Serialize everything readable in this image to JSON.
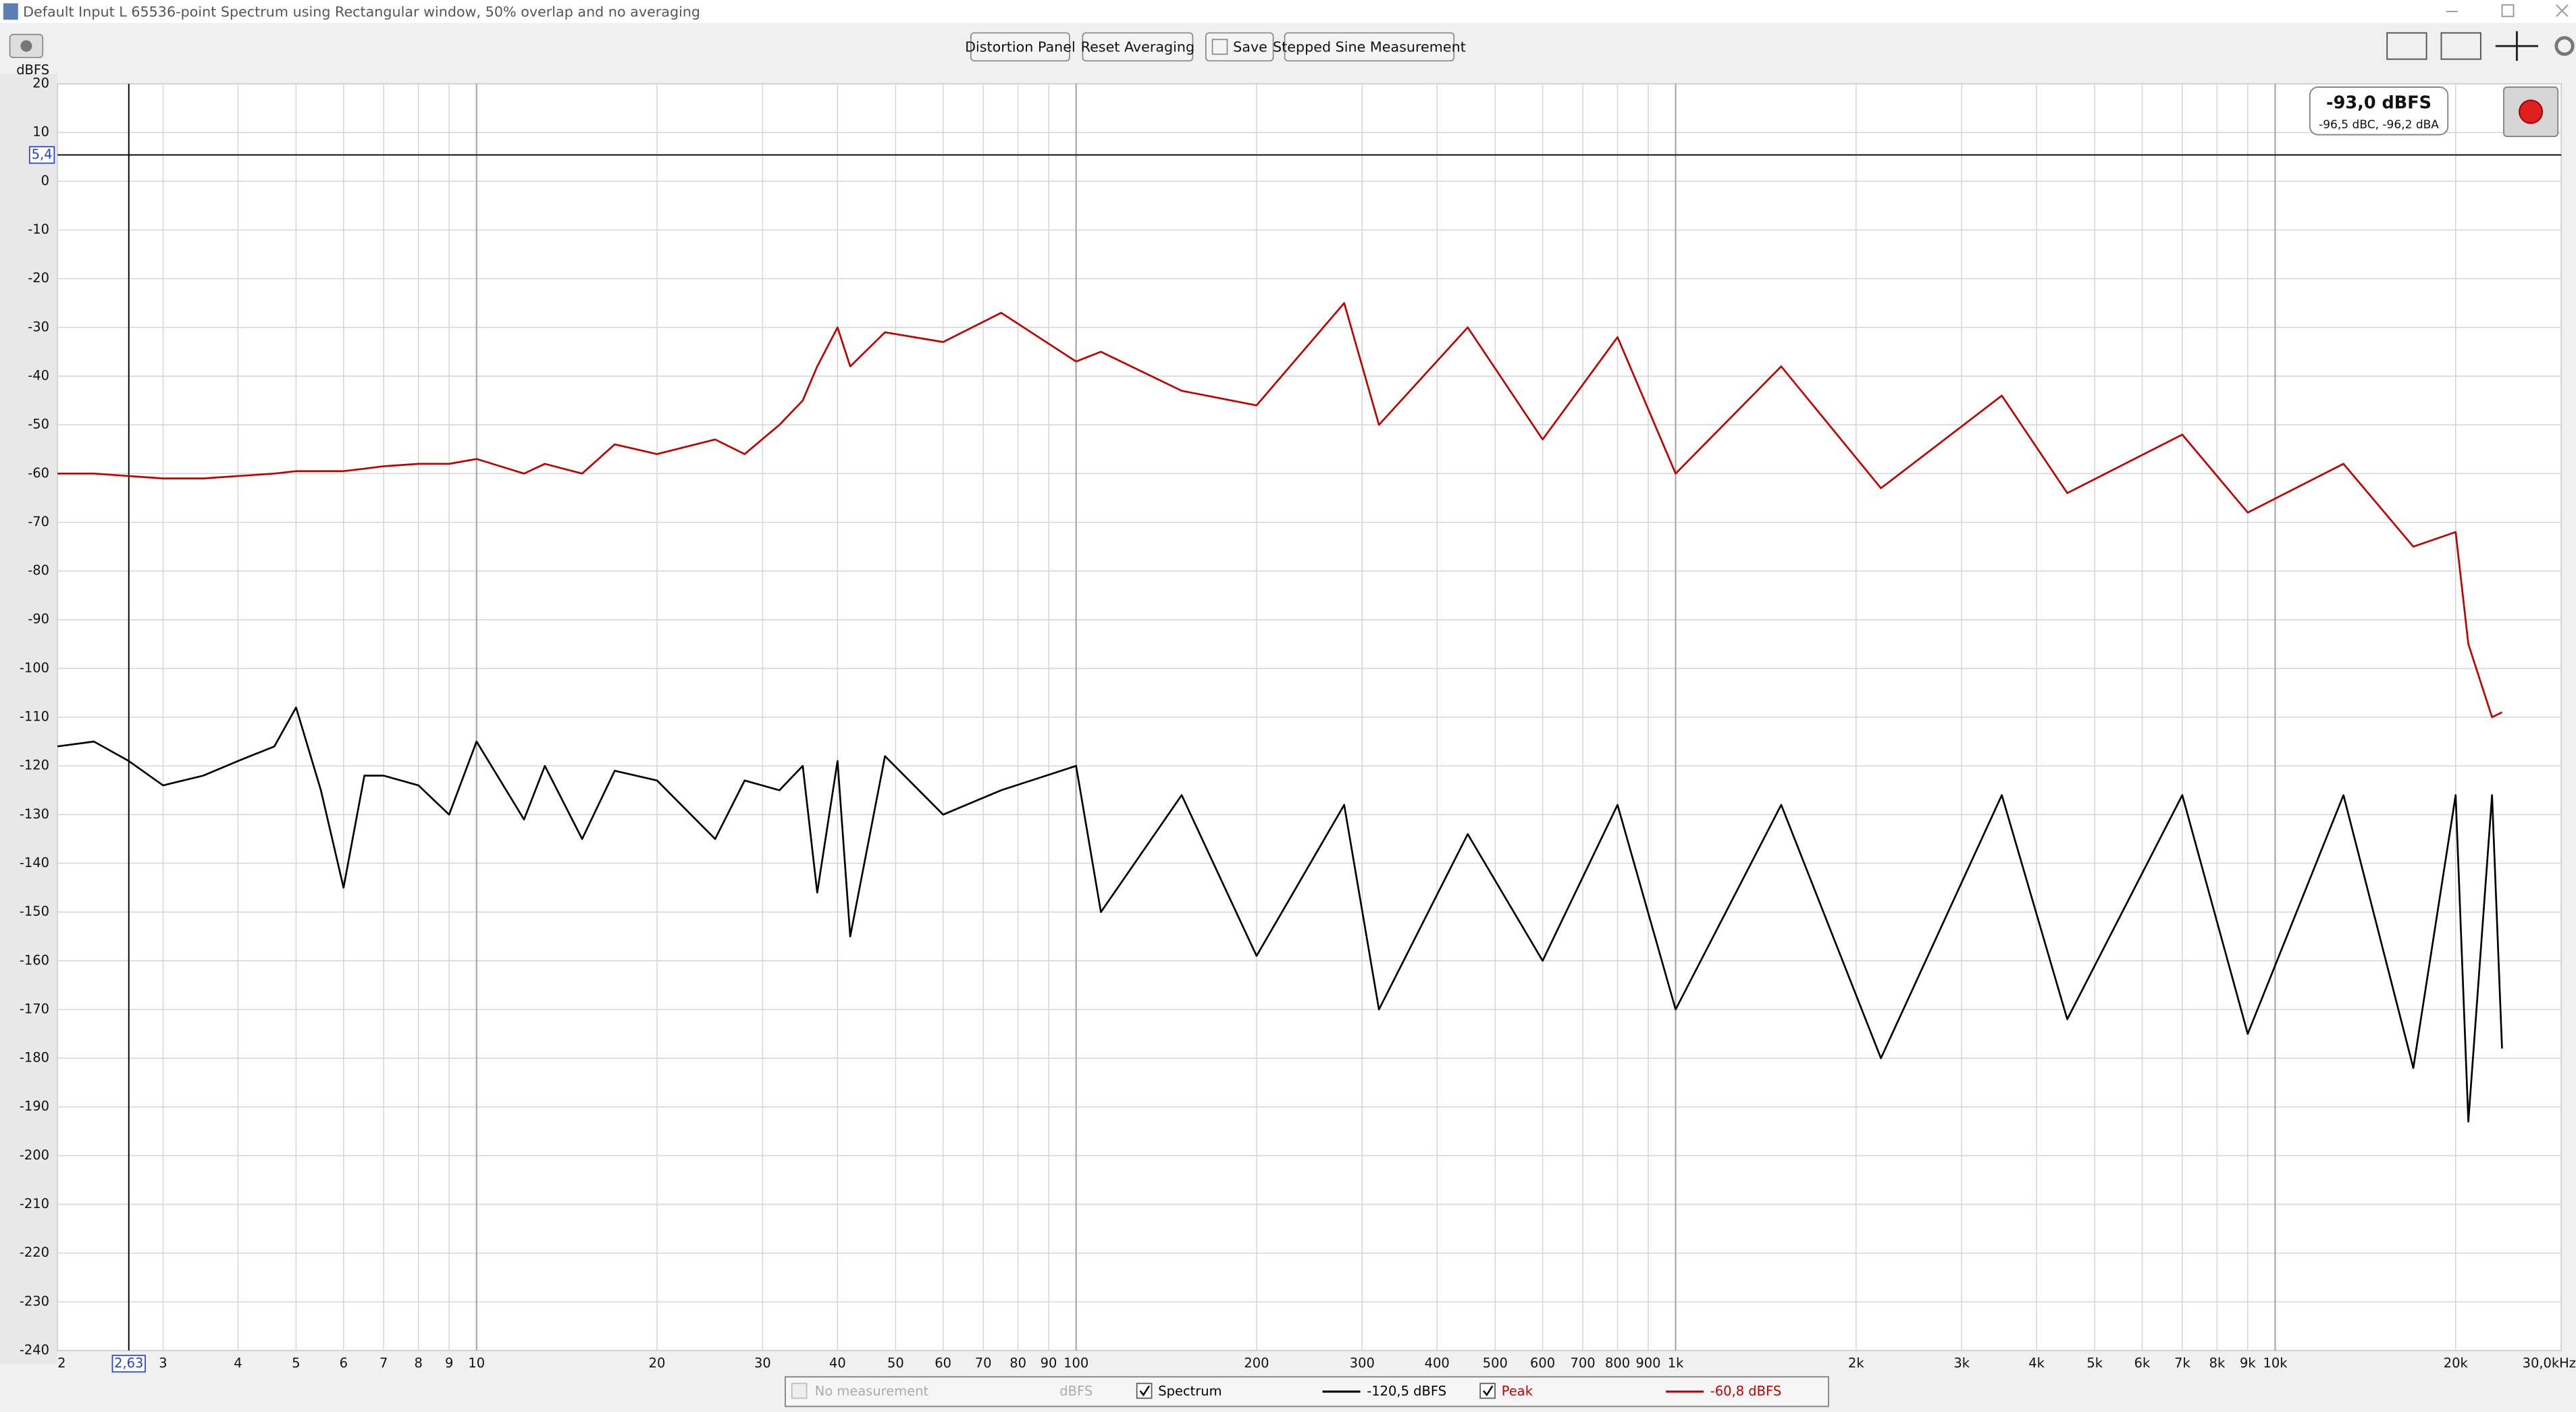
{
  "window": {
    "title": "Default Input L 65536-point Spectrum using Rectangular window, 50% overlap and no averaging"
  },
  "toolbar": {
    "buttons": [
      "Distortion Panel",
      "Reset Averaging",
      "Save",
      "Stepped Sine Measurement"
    ]
  },
  "readout": {
    "level": "-93,0 dBFS",
    "weighted": "-96,5 dBC, -96,2 dBA"
  },
  "legend": {
    "placeholder": "No measurement",
    "placeholder_unit": "dBFS",
    "values": [
      "-120,5 dBFS",
      "-60,8 dBFS"
    ]
  },
  "chart_data": {
    "type": "line",
    "y_label": "dBFS",
    "x_scale": "log",
    "grid": true,
    "xlim": [
      2,
      30000
    ],
    "ylim": [
      -240,
      20
    ],
    "xticks": [
      2,
      3,
      4,
      5,
      6,
      7,
      8,
      9,
      10,
      20,
      30,
      40,
      50,
      60,
      70,
      80,
      90,
      100,
      200,
      300,
      400,
      500,
      600,
      700,
      800,
      900,
      {
        "value": 1000,
        "label": "1k"
      },
      {
        "value": 2000,
        "label": "2k"
      },
      {
        "value": 3000,
        "label": "3k"
      },
      {
        "value": 4000,
        "label": "4k"
      },
      {
        "value": 5000,
        "label": "5k"
      },
      {
        "value": 6000,
        "label": "6k"
      },
      {
        "value": 7000,
        "label": "7k"
      },
      {
        "value": 8000,
        "label": "8k"
      },
      {
        "value": 9000,
        "label": "9k"
      },
      {
        "value": 10000,
        "label": "10k"
      },
      {
        "value": 20000,
        "label": "20k"
      },
      {
        "value": 30000,
        "label": "30,0kHz"
      }
    ],
    "yticks": [
      -240,
      -230,
      -220,
      -210,
      -200,
      -190,
      -180,
      -170,
      -160,
      -150,
      -140,
      -130,
      -120,
      -110,
      -100,
      -90,
      -80,
      -70,
      -60,
      -50,
      -40,
      -30,
      -20,
      -10,
      0,
      10,
      20
    ],
    "cursor": {
      "x": {
        "value": 2.63,
        "label": "2,63"
      },
      "y": {
        "value": 5.4,
        "label": "5,4"
      }
    },
    "x": [
      2,
      2.3,
      2.63,
      3,
      3.5,
      4,
      4.6,
      5,
      5.5,
      6,
      6.5,
      7,
      8,
      9,
      10,
      12,
      13,
      15,
      17,
      20,
      25,
      28,
      32,
      35,
      37,
      40,
      42,
      48,
      60,
      75,
      100,
      110,
      150,
      200,
      280,
      320,
      450,
      600,
      800,
      1000,
      1500,
      2200,
      3500,
      4500,
      7000,
      9000,
      13000,
      17000,
      20000,
      21000,
      23000,
      23900
    ],
    "series": [
      {
        "name": "Spectrum",
        "color": "#000000",
        "values": [
          -116,
          -115,
          -119,
          -124,
          -122,
          -119,
          -116,
          -108,
          -125,
          -145,
          -122,
          -122,
          -124,
          -130,
          -115,
          -131,
          -120,
          -135,
          -121,
          -123,
          -135,
          -123,
          -125,
          -120,
          -146,
          -119,
          -155,
          -118,
          -130,
          -125,
          -120,
          -150,
          -126,
          -159,
          -128,
          -170,
          -134,
          -160,
          -128,
          -170,
          -128,
          -180,
          -126,
          -172,
          -126,
          -175,
          -126,
          -182,
          -126,
          -193,
          -126,
          -178
        ]
      },
      {
        "name": "Peak",
        "color": "#c00000",
        "values": [
          -60,
          -60,
          -60.5,
          -61,
          -61,
          -60.5,
          -60,
          -59.5,
          -59.5,
          -59.5,
          -59,
          -58.5,
          -58,
          -58,
          -57,
          -60,
          -58,
          -60,
          -54,
          -56,
          -53,
          -56,
          -50,
          -45,
          -38,
          -30,
          -38,
          -31,
          -33,
          -27,
          -37,
          -35,
          -43,
          -46,
          -25,
          -50,
          -30,
          -53,
          -32,
          -60,
          -38,
          -63,
          -44,
          -64,
          -52,
          -68,
          -58,
          -75,
          -72,
          -95,
          -110,
          -109
        ]
      }
    ]
  }
}
